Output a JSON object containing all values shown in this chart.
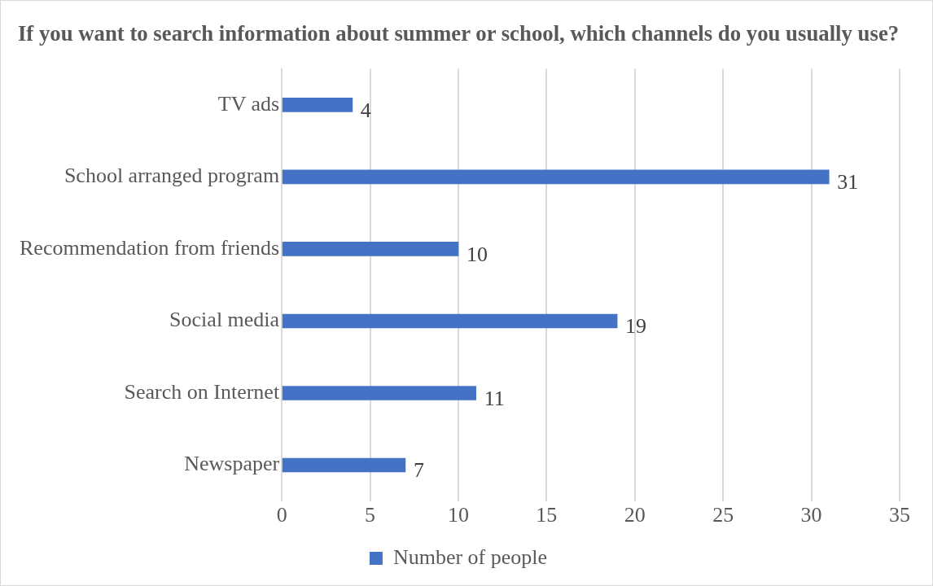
{
  "chart_data": {
    "type": "bar",
    "orientation": "horizontal",
    "title": "If you want to search information about summer or school, which channels do you usually use?",
    "categories": [
      "TV ads",
      "School arranged program",
      "Recommendation from friends",
      "Social media",
      "Search on Internet",
      "Newspaper"
    ],
    "series": [
      {
        "name": "Number of people",
        "color": "#4472c4",
        "values": [
          4,
          31,
          10,
          19,
          11,
          7
        ]
      }
    ],
    "xlim": [
      0,
      35
    ],
    "xticks": [
      0,
      5,
      10,
      15,
      20,
      25,
      30,
      35
    ],
    "grid": "x",
    "legend": "bottom",
    "data_labels": true
  }
}
